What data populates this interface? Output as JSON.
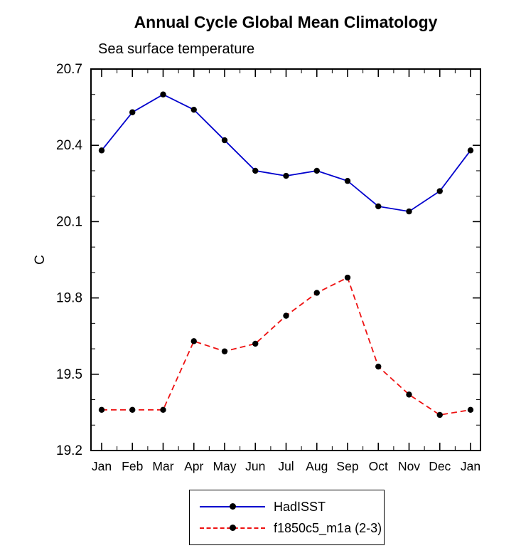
{
  "title": "Annual Cycle Global Mean Climatology",
  "subtitle": "Sea surface temperature",
  "ylabel": "C",
  "chart_data": {
    "type": "line",
    "categories": [
      "Jan",
      "Feb",
      "Mar",
      "Apr",
      "May",
      "Jun",
      "Jul",
      "Aug",
      "Sep",
      "Oct",
      "Nov",
      "Dec",
      "Jan"
    ],
    "series": [
      {
        "name": "HadISST",
        "color": "#0000cd",
        "style": "solid",
        "values": [
          20.38,
          20.53,
          20.6,
          20.54,
          20.42,
          20.3,
          20.28,
          20.3,
          20.26,
          20.16,
          20.14,
          20.22,
          20.38
        ]
      },
      {
        "name": "f1850c5_m1a (2-3)",
        "color": "#ee1111",
        "style": "dashed",
        "values": [
          19.36,
          19.36,
          19.36,
          19.63,
          19.59,
          19.62,
          19.73,
          19.82,
          19.88,
          19.53,
          19.42,
          19.34,
          19.36
        ]
      }
    ],
    "ylim": [
      19.2,
      20.7
    ],
    "yticks": [
      19.2,
      19.5,
      19.8,
      20.1,
      20.4,
      20.7
    ],
    "y_minor_step": 0.1,
    "marker_color": "#000000",
    "grid": false,
    "legend_position": "bottom"
  },
  "legend": {
    "entries": [
      "HadISST",
      "f1850c5_m1a (2-3)"
    ]
  }
}
